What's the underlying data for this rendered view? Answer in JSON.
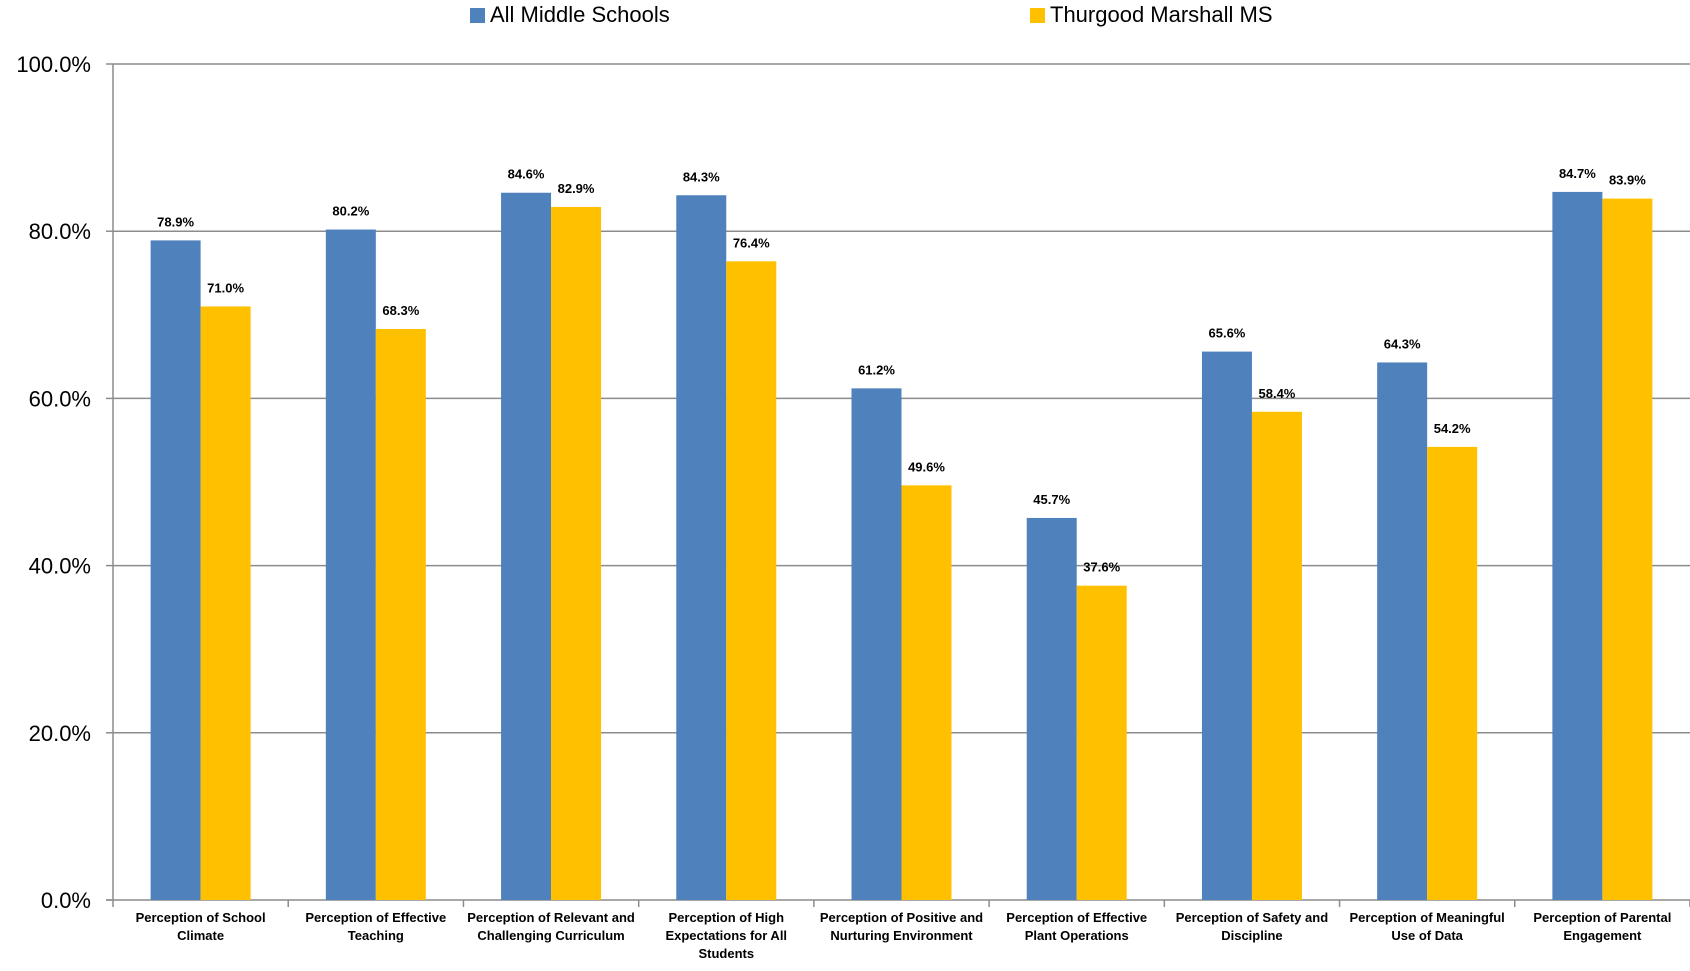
{
  "chart_data": {
    "type": "bar",
    "title": "",
    "xlabel": "",
    "ylabel": "",
    "ylim": [
      0,
      100
    ],
    "yticks": [
      "0.0%",
      "20.0%",
      "40.0%",
      "60.0%",
      "80.0%",
      "100.0%"
    ],
    "grid": true,
    "legend_position": "top",
    "categories": [
      "Perception of School Climate",
      "Perception of Effective Teaching",
      "Perception of Relevant and Challenging Curriculum",
      "Perception of High Expectations for All Students",
      "Perception of Positive and Nurturing Environment",
      "Perception of Effective Plant Operations",
      "Perception of Safety and Discipline",
      "Perception of Meaningful Use of Data",
      "Perception of Parental Engagement"
    ],
    "series": [
      {
        "name": "All Middle Schools",
        "color": "#4F81BD",
        "values": [
          78.9,
          80.2,
          84.6,
          84.3,
          61.2,
          45.7,
          65.6,
          64.3,
          84.7
        ],
        "labels": [
          "78.9%",
          "80.2%",
          "84.6%",
          "84.3%",
          "61.2%",
          "45.7%",
          "65.6%",
          "64.3%",
          "84.7%"
        ]
      },
      {
        "name": "Thurgood Marshall MS",
        "color": "#FFC000",
        "values": [
          71.0,
          68.3,
          82.9,
          76.4,
          49.6,
          37.6,
          58.4,
          54.2,
          83.9
        ],
        "labels": [
          "71.0%",
          "68.3%",
          "82.9%",
          "76.4%",
          "49.6%",
          "37.6%",
          "58.4%",
          "54.2%",
          "83.9%"
        ]
      }
    ]
  }
}
